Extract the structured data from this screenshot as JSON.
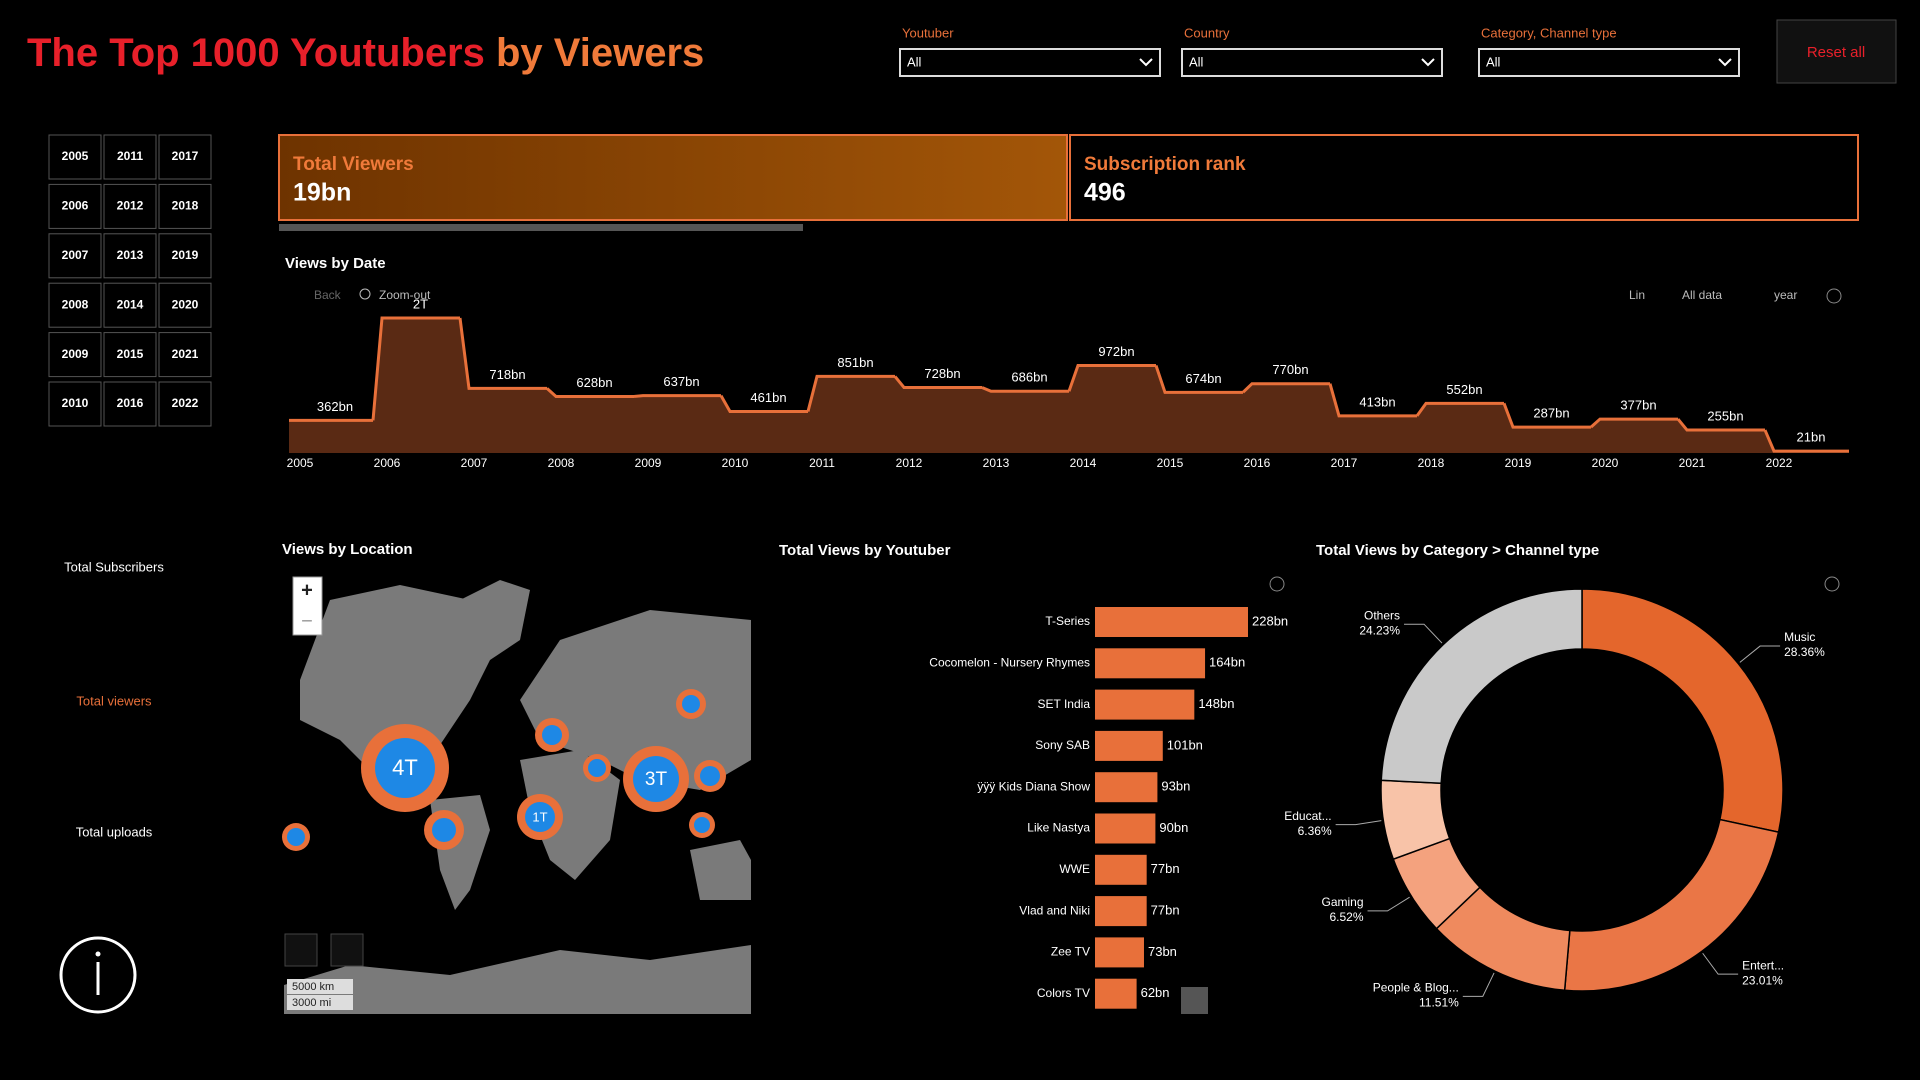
{
  "header": {
    "title_part1": "The Top 1000 Youtubers",
    "title_part2": "by Viewers"
  },
  "filters": [
    {
      "label": "Youtuber",
      "value": "All"
    },
    {
      "label": "Country",
      "value": "All"
    },
    {
      "label": "Category, Channel type",
      "value": "All"
    }
  ],
  "reset": "Reset all",
  "years": [
    "2005",
    "2006",
    "2007",
    "2008",
    "2009",
    "2010",
    "2011",
    "2012",
    "2013",
    "2014",
    "2015",
    "2016",
    "2017",
    "2018",
    "2019",
    "2020",
    "2021",
    "2022"
  ],
  "kpis": [
    {
      "label": "Total Viewers",
      "value": "19bn"
    },
    {
      "label": "Subscription rank",
      "value": 496
    }
  ],
  "side_labels": [
    "Total Subscribers",
    "Total viewers",
    "Total uploads"
  ],
  "toolbar": {
    "back": "Back",
    "zoom_out": "Zoom-out",
    "scale": "Lin",
    "range": "All data",
    "level": "year"
  },
  "map": {
    "title": "Views by Location",
    "zoom_in": "+",
    "zoom_out": "−",
    "bubbles": [
      "4T",
      "3T",
      "1T"
    ],
    "scale": [
      "5000 km",
      "3000 mi"
    ]
  },
  "chart_data": [
    {
      "type": "area",
      "title": "Views by Date",
      "categories": [
        "2005",
        "2006",
        "2007",
        "2008",
        "2009",
        "2010",
        "2011",
        "2012",
        "2013",
        "2014",
        "2015",
        "2016",
        "2017",
        "2018",
        "2019",
        "2020",
        "2021",
        "2022"
      ],
      "values": [
        362,
        1500,
        718,
        628,
        637,
        461,
        851,
        728,
        686,
        972,
        674,
        770,
        413,
        552,
        287,
        377,
        255,
        21
      ],
      "value_labels": [
        "362bn",
        "2T",
        "718bn",
        "628bn",
        "637bn",
        "461bn",
        "851bn",
        "728bn",
        "686bn",
        "972bn",
        "674bn",
        "770bn",
        "413bn",
        "552bn",
        "287bn",
        "377bn",
        "255bn",
        "21bn"
      ],
      "color": "#e8703a",
      "fill": "#5a2a14"
    },
    {
      "type": "bar",
      "title": "Total Views by Youtuber",
      "categories": [
        "T-Series",
        "Cocomelon - Nursery Rhymes",
        "SET India",
        "Sony SAB",
        "ÿÿÿ Kids Diana Show",
        "Like Nastya",
        "WWE",
        "Vlad and Niki",
        "Zee TV",
        "Colors TV"
      ],
      "values": [
        228,
        164,
        148,
        101,
        93,
        90,
        77,
        77,
        73,
        62
      ],
      "value_labels": [
        "228bn",
        "164bn",
        "148bn",
        "101bn",
        "93bn",
        "90bn",
        "77bn",
        "77bn",
        "73bn",
        "62bn"
      ],
      "color": "#e8703a"
    },
    {
      "type": "pie",
      "title": "Total Views by Category > Channel type",
      "categories": [
        "Music",
        "Entert...",
        "People & Blog...",
        "Gaming",
        "Educat...",
        "Others"
      ],
      "values": [
        28.36,
        23.01,
        11.51,
        6.52,
        6.36,
        24.23
      ],
      "value_labels": [
        "28.36%",
        "23.01%",
        "11.51%",
        "6.52%",
        "6.36%",
        "24.23%"
      ],
      "colors": [
        "#e4662c",
        "#ea7646",
        "#ef8a5e",
        "#f4a27e",
        "#f8c3a8",
        "#c9c9c9"
      ]
    }
  ]
}
